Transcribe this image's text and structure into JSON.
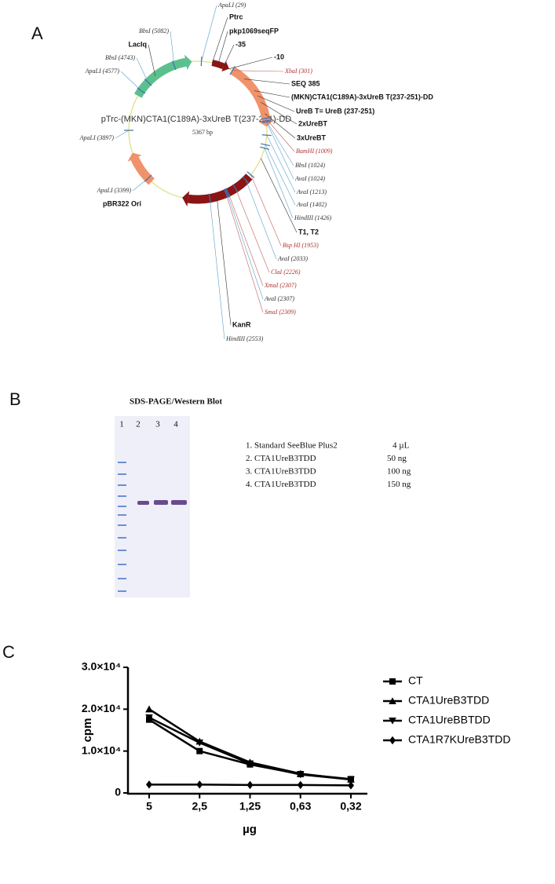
{
  "panel_a": {
    "letter": "A",
    "plasmid_name": "pTrc-(MKN)CTA1(C189A)-3xUreB T(237-251)-DD",
    "plasmid_size": "5367 bp",
    "features": [
      {
        "text": "ApaLI (29)",
        "style": "site"
      },
      {
        "text": "Ptrc",
        "style": "bold"
      },
      {
        "text": "pkp1069seqFP",
        "style": "bold"
      },
      {
        "text": "-35",
        "style": "bold"
      },
      {
        "text": "-10",
        "style": "bold"
      },
      {
        "text": "XbaI (301)",
        "style": "site-red"
      },
      {
        "text": "SEQ 385",
        "style": "bold"
      },
      {
        "text": "(MKN)CTA1(C189A)-3xUreB T(237-251)-DD",
        "style": "bold"
      },
      {
        "text": "UreB T= UreB (237-251)",
        "style": "bold"
      },
      {
        "text": "2xUreBT",
        "style": "bold"
      },
      {
        "text": "3xUreBT",
        "style": "bold"
      },
      {
        "text": "BamHI (1009)",
        "style": "site-red"
      },
      {
        "text": "BbsI (1024)",
        "style": "site"
      },
      {
        "text": "AvaI (1024)",
        "style": "site"
      },
      {
        "text": "AvaI (1213)",
        "style": "site"
      },
      {
        "text": "AvaI (1402)",
        "style": "site"
      },
      {
        "text": "HindIII (1426)",
        "style": "site"
      },
      {
        "text": "T1, T2",
        "style": "bold"
      },
      {
        "text": "Bsp HI (1953)",
        "style": "site-red"
      },
      {
        "text": "AvaI (2033)",
        "style": "site"
      },
      {
        "text": "ClaI (2226)",
        "style": "site-red"
      },
      {
        "text": "XmaI (2307)",
        "style": "site-red"
      },
      {
        "text": "AvaI (2307)",
        "style": "site"
      },
      {
        "text": "SmaI (2309)",
        "style": "site-red"
      },
      {
        "text": "KanR",
        "style": "bold"
      },
      {
        "text": "HindIII (2553)",
        "style": "site"
      },
      {
        "text": "BbsI (5082)",
        "style": "site"
      },
      {
        "text": "LacIq",
        "style": "bold"
      },
      {
        "text": "BbsI (4743)",
        "style": "site"
      },
      {
        "text": "ApaLI (4577)",
        "style": "site"
      },
      {
        "text": "ApaLI (3897)",
        "style": "site"
      },
      {
        "text": "ApaLI (3399)",
        "style": "site"
      },
      {
        "text": "pBR322 Ori",
        "style": "bold"
      }
    ]
  },
  "panel_b": {
    "letter": "B",
    "title": "SDS-PAGE/Western Blot",
    "lanes": [
      "1",
      "2",
      "3",
      "4"
    ],
    "legend": [
      {
        "sample": "1. Standard SeeBlue Plus2",
        "amount": "4 µL"
      },
      {
        "sample": "2. CTA1UreB3TDD",
        "amount": "50 ng"
      },
      {
        "sample": "3. CTA1UreB3TDD",
        "amount": "100 ng"
      },
      {
        "sample": "4. CTA1UreB3TDD",
        "amount": "150 ng"
      }
    ]
  },
  "chart_data": {
    "type": "line",
    "panel_label": "C",
    "xlabel": "µg",
    "ylabel": "cpm",
    "categories": [
      "5",
      "2,5",
      "1,25",
      "0,63",
      "0,32"
    ],
    "ylim": [
      0,
      30000
    ],
    "yticks": [
      0,
      {
        "value": 10000,
        "label": "1.0×10⁴"
      },
      {
        "value": 20000,
        "label": "2.0×10⁴"
      },
      {
        "value": 30000,
        "label": "3.0×10⁴"
      }
    ],
    "series": [
      {
        "name": "CT",
        "color": "#000000",
        "marker": "square",
        "values": [
          17500,
          10000,
          6800,
          4500,
          3300
        ]
      },
      {
        "name": "CTA1UreB3TDD",
        "color": "#000000",
        "marker": "triangle",
        "values": [
          20000,
          12300,
          7300,
          4600,
          3200
        ]
      },
      {
        "name": "CTA1UreBBTDD",
        "color": "#000000",
        "marker": "triangle-down",
        "values": [
          18000,
          12000,
          7000,
          4400,
          3200
        ]
      },
      {
        "name": "CTA1R7KUreB3TDD",
        "color": "#000000",
        "marker": "diamond",
        "values": [
          2000,
          2000,
          1900,
          1900,
          1800
        ]
      }
    ]
  }
}
